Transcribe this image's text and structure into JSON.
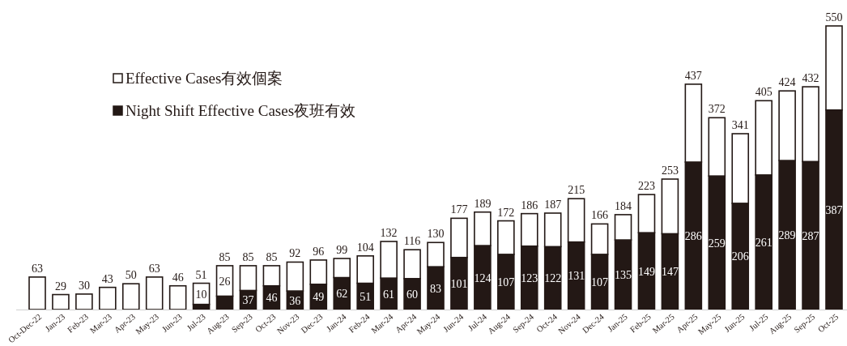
{
  "chart_data": {
    "type": "bar",
    "stacked": true,
    "legend": "top left",
    "categories": [
      "Oct-Dec-22",
      "Jan-23",
      "Feb-23",
      "Mar-23",
      "Apr-23",
      "May-23",
      "Jun-23",
      "Jul-23",
      "Aug-23",
      "Sep-23",
      "Oct-23",
      "Nov-23",
      "Dec-23",
      "Jan-24",
      "Feb-24",
      "Mar-24",
      "Apr-24",
      "May-24",
      "Jun-24",
      "Jul-24",
      "Aug-24",
      "Sep-24",
      "Oct-24",
      "Nov-24",
      "Dec-24",
      "Jan-25",
      "Feb-25",
      "Mar-25",
      "Apr-25",
      "May-25",
      "Jun-25",
      "Jul-25",
      "Aug-25",
      "Sep-25",
      "Oct-25"
    ],
    "series": [
      {
        "name": "Night Shift Effective Cases夜班有效",
        "color": "#231815",
        "values": [
          null,
          null,
          null,
          null,
          null,
          null,
          null,
          10,
          26,
          37,
          46,
          36,
          49,
          62,
          51,
          61,
          60,
          83,
          101,
          124,
          107,
          123,
          122,
          131,
          107,
          135,
          149,
          147,
          286,
          259,
          206,
          261,
          289,
          287,
          387
        ],
        "value_labels": [
          null,
          null,
          null,
          null,
          null,
          null,
          null,
          "10",
          "26",
          "37",
          "46",
          "36",
          "49",
          "62",
          "51",
          "61",
          "60",
          "83",
          "101",
          "124",
          "107",
          "123",
          "122",
          "131",
          "107",
          "135",
          "149",
          "147",
          "286",
          "259",
          "206",
          "261",
          "289",
          "287",
          "387"
        ]
      },
      {
        "name": "Effective Cases有效個案",
        "color": "#ffffff",
        "values": [
          63,
          29,
          30,
          43,
          50,
          63,
          46,
          41,
          59,
          48,
          39,
          56,
          47,
          37,
          53,
          71,
          56,
          47,
          76,
          65,
          65,
          63,
          65,
          84,
          59,
          49,
          74,
          106,
          151,
          113,
          135,
          144,
          135,
          145,
          163
        ]
      }
    ],
    "totals": [
      "63",
      "29",
      "30",
      "43",
      "50",
      "63",
      "46",
      "51",
      "85",
      "85",
      "85",
      "92",
      "96",
      "99",
      "104",
      "132",
      "116",
      "130",
      "177",
      "189",
      "172",
      "186",
      "187",
      "215",
      "166",
      "184",
      "223",
      "253",
      "437",
      "372",
      "341",
      "405",
      "424",
      "432",
      "550"
    ]
  }
}
